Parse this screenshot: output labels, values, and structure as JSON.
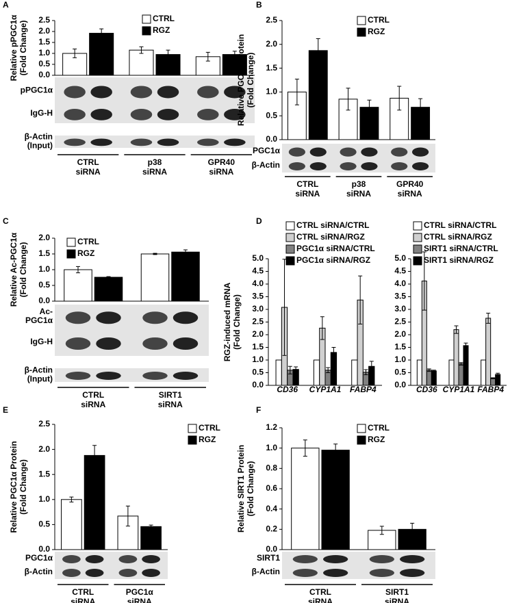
{
  "chart_data": [
    {
      "type": "bar",
      "panel": "A",
      "y_label": [
        "Relative pPGC1α",
        "(Fold Change)"
      ],
      "categories": [
        [
          "CTRL",
          "siRNA"
        ],
        [
          "p38",
          "siRNA"
        ],
        [
          "GPR40",
          "siRNA"
        ]
      ],
      "blots": [
        [
          "pPGC1α"
        ],
        [
          "IgG-H"
        ],
        [
          "β-Actin",
          "(Input)"
        ]
      ],
      "ylim": [
        0,
        2.5
      ],
      "yticks": [
        {
          "value": 0,
          "label": "0.0"
        },
        {
          "value": 0.5,
          "label": "0.5"
        },
        {
          "value": 1,
          "label": "1.0"
        },
        {
          "value": 1.5,
          "label": "1.5"
        },
        {
          "value": 2,
          "label": "2.0"
        },
        {
          "value": 2.5,
          "label": "2.5"
        }
      ],
      "series": [
        {
          "name": "CTRL",
          "color": "#ffffff",
          "values": [
            1.0,
            1.15,
            0.85
          ],
          "errors": [
            0.2,
            0.15,
            0.2
          ]
        },
        {
          "name": "RGZ",
          "color": "#000000",
          "values": [
            1.92,
            0.95,
            0.95
          ],
          "errors": [
            0.2,
            0.2,
            0.15
          ]
        }
      ]
    },
    {
      "type": "bar",
      "panel": "B",
      "y_label": [
        "Relative PGC1α Protein",
        "(Fold Change)"
      ],
      "categories": [
        [
          "CTRL",
          "siRNA"
        ],
        [
          "p38",
          "siRNA"
        ],
        [
          "GPR40",
          "siRNA"
        ]
      ],
      "blots": [
        [
          "PGC1α"
        ],
        [
          "β-Actin"
        ]
      ],
      "ylim": [
        0,
        2.5
      ],
      "yticks": [
        {
          "value": 0,
          "label": "0.0"
        },
        {
          "value": 0.5,
          "label": "0.5"
        },
        {
          "value": 1,
          "label": "1.0"
        },
        {
          "value": 1.5,
          "label": "1.5"
        },
        {
          "value": 2,
          "label": "2.0"
        },
        {
          "value": 2.5,
          "label": "2.5"
        }
      ],
      "series": [
        {
          "name": "CTRL",
          "color": "#ffffff",
          "values": [
            1.0,
            0.85,
            0.87
          ],
          "errors": [
            0.27,
            0.23,
            0.25
          ]
        },
        {
          "name": "RGZ",
          "color": "#000000",
          "values": [
            1.87,
            0.68,
            0.68
          ],
          "errors": [
            0.25,
            0.15,
            0.18
          ]
        }
      ]
    },
    {
      "type": "bar",
      "panel": "C",
      "y_label": [
        "Relative Ac-PGC1α",
        "(Fold Change)"
      ],
      "categories": [
        [
          "CTRL",
          "siRNA"
        ],
        [
          "SIRT1",
          "siRNA"
        ]
      ],
      "blots": [
        [
          "Ac-",
          "PGC1α"
        ],
        [
          "IgG-H"
        ],
        [
          "β-Actin",
          "(Input)"
        ]
      ],
      "ylim": [
        0,
        2
      ],
      "yticks": [
        {
          "value": 0,
          "label": "0.0"
        },
        {
          "value": 0.5,
          "label": "0.5"
        },
        {
          "value": 1,
          "label": "1.0"
        },
        {
          "value": 1.5,
          "label": "1.5"
        },
        {
          "value": 2,
          "label": "2.0"
        }
      ],
      "series": [
        {
          "name": "CTRL",
          "color": "#ffffff",
          "values": [
            1.0,
            1.5
          ],
          "errors": [
            0.1,
            0.02
          ]
        },
        {
          "name": "RGZ",
          "color": "#000000",
          "values": [
            0.76,
            1.56
          ],
          "errors": [
            0.02,
            0.07
          ]
        }
      ]
    },
    {
      "type": "bar",
      "panel": "D",
      "y_label": [
        "RGZ-induced mRNA",
        "(Fold Change)"
      ],
      "categories": [
        [
          "CD36"
        ],
        [
          "CYP1A1"
        ],
        [
          "FABP4"
        ]
      ],
      "ylim": [
        0,
        5
      ],
      "yticks": [
        {
          "value": 0,
          "label": "0.0"
        },
        {
          "value": 0.5,
          "label": "0.5"
        },
        {
          "value": 1,
          "label": "1.0"
        },
        {
          "value": 1.5,
          "label": "1.5"
        },
        {
          "value": 2,
          "label": "2.0"
        },
        {
          "value": 2.5,
          "label": "2.5"
        },
        {
          "value": 3,
          "label": "3.0"
        },
        {
          "value": 3.5,
          "label": "3.5"
        },
        {
          "value": 4,
          "label": "4.0"
        },
        {
          "value": 4.5,
          "label": "4.5"
        },
        {
          "value": 5,
          "label": "5.0"
        }
      ],
      "series": [
        {
          "name": "CTRL siRNA/CTRL",
          "color": "#ffffff",
          "values": [
            1,
            1,
            1
          ]
        },
        {
          "name": "CTRL siRNA/RGZ",
          "color": "#d0d0d0",
          "values": [
            3.08,
            2.26,
            3.37
          ],
          "errors": [
            1.9,
            0.45,
            0.95
          ]
        },
        {
          "name": "PGC1α siRNA/CTRL",
          "color": "#808080",
          "values": [
            0.6,
            0.6,
            0.52
          ],
          "errors": [
            0.15,
            0.1,
            0.1
          ]
        },
        {
          "name": "PGC1α siRNA/RGZ",
          "color": "#000000",
          "values": [
            0.63,
            1.3,
            0.75
          ],
          "errors": [
            0.1,
            0.2,
            0.2
          ]
        }
      ]
    },
    {
      "type": "bar",
      "categories": [
        [
          "CD36"
        ],
        [
          "CYP1A1"
        ],
        [
          "FABP4"
        ]
      ],
      "ylim": [
        0,
        5
      ],
      "yticks": [
        {
          "value": 0,
          "label": "0.0"
        },
        {
          "value": 0.5,
          "label": "0.5"
        },
        {
          "value": 1,
          "label": "1.0"
        },
        {
          "value": 1.5,
          "label": "1.5"
        },
        {
          "value": 2,
          "label": "2.0"
        },
        {
          "value": 2.5,
          "label": "2.5"
        },
        {
          "value": 3,
          "label": "3.0"
        },
        {
          "value": 3.5,
          "label": "3.5"
        },
        {
          "value": 4,
          "label": "4.0"
        },
        {
          "value": 4.5,
          "label": "4.5"
        },
        {
          "value": 5,
          "label": "5.0"
        }
      ],
      "series": [
        {
          "name": "CTRL siRNA/CTRL",
          "color": "#ffffff",
          "values": [
            1,
            1,
            1
          ]
        },
        {
          "name": "CTRL siRNA/RGZ",
          "color": "#d0d0d0",
          "values": [
            4.12,
            2.2,
            2.65
          ],
          "errors": [
            1.15,
            0.15,
            0.2
          ]
        },
        {
          "name": "SIRT1 siRNA/CTRL",
          "color": "#808080",
          "values": [
            0.6,
            0.85,
            0.28
          ],
          "errors": [
            0.05,
            0.05,
            0.02
          ]
        },
        {
          "name": "SIRT1 siRNA/RGZ",
          "color": "#000000",
          "values": [
            0.57,
            1.57,
            0.43
          ],
          "errors": [
            0.03,
            0.1,
            0.05
          ]
        }
      ]
    },
    {
      "type": "bar",
      "panel": "E",
      "y_label": [
        "Relative PGC1α Protein",
        "(Fold Change)"
      ],
      "categories": [
        [
          "CTRL",
          "siRNA"
        ],
        [
          "PGC1α",
          "siRNA"
        ]
      ],
      "blots": [
        [
          "PGC1α"
        ],
        [
          "β-Actin"
        ]
      ],
      "ylim": [
        0,
        2.5
      ],
      "yticks": [
        {
          "value": 0,
          "label": "0.0"
        },
        {
          "value": 0.5,
          "label": "0.5"
        },
        {
          "value": 1,
          "label": "1.0"
        },
        {
          "value": 1.5,
          "label": "1.5"
        },
        {
          "value": 2,
          "label": "2.0"
        },
        {
          "value": 2.5,
          "label": "2.5"
        }
      ],
      "series": [
        {
          "name": "CTRL",
          "color": "#ffffff",
          "values": [
            1.0,
            0.67
          ],
          "errors": [
            0.05,
            0.2
          ]
        },
        {
          "name": "RGZ",
          "color": "#000000",
          "values": [
            1.88,
            0.46
          ],
          "errors": [
            0.2,
            0.03
          ]
        }
      ]
    },
    {
      "type": "bar",
      "panel": "F",
      "y_label": [
        "Relative SIRT1 Protein",
        "(Fold Change)"
      ],
      "categories": [
        [
          "CTRL",
          "siRNA"
        ],
        [
          "SIRT1",
          "siRNA"
        ]
      ],
      "blots": [
        [
          "SIRT1"
        ],
        [
          "β-Actin"
        ]
      ],
      "ylim": [
        0,
        1.2
      ],
      "yticks": [
        {
          "value": 0,
          "label": "0.0"
        },
        {
          "value": 0.2,
          "label": "0.2"
        },
        {
          "value": 0.4,
          "label": "0.4"
        },
        {
          "value": 0.6,
          "label": "0.6"
        },
        {
          "value": 0.8,
          "label": "0.8"
        },
        {
          "value": 1,
          "label": "1.0"
        },
        {
          "value": 1.2,
          "label": "1.2"
        }
      ],
      "series": [
        {
          "name": "CTRL",
          "color": "#ffffff",
          "values": [
            1.0,
            0.19
          ],
          "errors": [
            0.08,
            0.04
          ]
        },
        {
          "name": "RGZ",
          "color": "#000000",
          "values": [
            0.98,
            0.2
          ],
          "errors": [
            0.06,
            0.06
          ]
        }
      ]
    }
  ]
}
